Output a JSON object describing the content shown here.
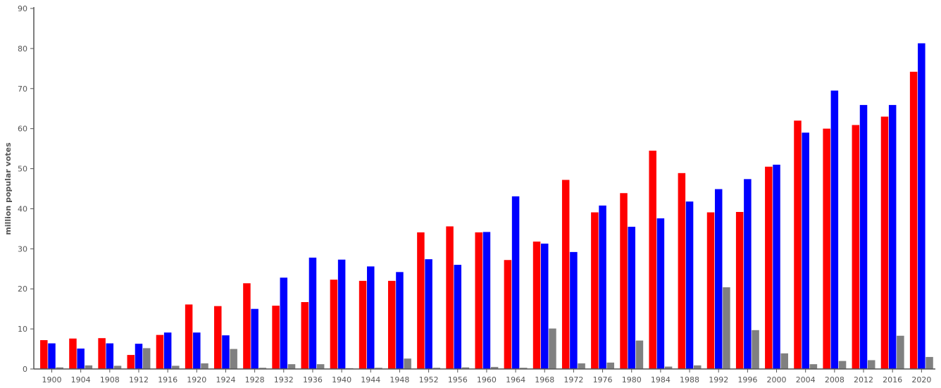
{
  "chart_data": {
    "type": "bar",
    "title": "",
    "xlabel": "",
    "ylabel": "million popular votes",
    "ylim": [
      0,
      90
    ],
    "yticks": [
      0,
      10,
      20,
      30,
      40,
      50,
      60,
      70,
      80,
      90
    ],
    "grid": false,
    "legend": "none",
    "categories": [
      "1900",
      "1904",
      "1908",
      "1912",
      "1916",
      "1920",
      "1924",
      "1928",
      "1932",
      "1936",
      "1940",
      "1944",
      "1948",
      "1952",
      "1956",
      "1960",
      "1964",
      "1968",
      "1972",
      "1976",
      "1980",
      "1984",
      "1988",
      "1992",
      "1996",
      "2000",
      "2004",
      "2008",
      "2012",
      "2016",
      "2020"
    ],
    "series": [
      {
        "color": "#ff0000",
        "values": [
          7.2,
          7.6,
          7.7,
          3.5,
          8.5,
          16.1,
          15.7,
          21.4,
          15.8,
          16.7,
          22.3,
          22.0,
          22.0,
          34.1,
          35.6,
          34.1,
          27.2,
          31.8,
          47.2,
          39.1,
          43.9,
          54.5,
          48.9,
          39.1,
          39.2,
          50.5,
          62.0,
          60.0,
          60.9,
          63.0,
          74.2
        ]
      },
      {
        "color": "#0000ff",
        "values": [
          6.4,
          5.1,
          6.4,
          6.3,
          9.1,
          9.1,
          8.4,
          15.0,
          22.8,
          27.8,
          27.3,
          25.6,
          24.2,
          27.4,
          26.0,
          34.2,
          43.1,
          31.3,
          29.2,
          40.8,
          35.5,
          37.6,
          41.8,
          44.9,
          47.4,
          51.0,
          59.0,
          69.5,
          65.9,
          65.9,
          81.3
        ]
      },
      {
        "color": "#808080",
        "values": [
          0.4,
          0.9,
          0.8,
          5.2,
          0.8,
          1.4,
          5.0,
          0.3,
          1.2,
          1.2,
          0.2,
          0.3,
          2.6,
          0.3,
          0.4,
          0.5,
          0.3,
          10.1,
          1.4,
          1.6,
          7.1,
          0.6,
          0.9,
          20.4,
          9.7,
          3.9,
          1.2,
          2.0,
          2.2,
          8.3,
          3.0
        ]
      }
    ]
  }
}
